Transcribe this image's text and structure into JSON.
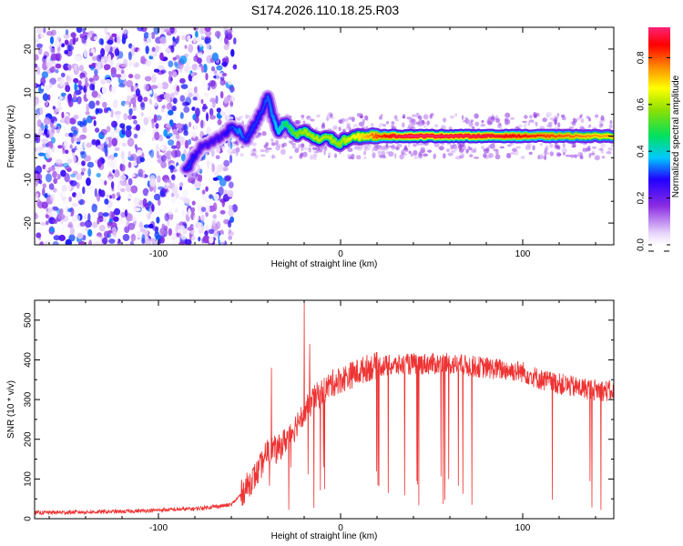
{
  "figure_title": "S174.2026.110.18.25.R03",
  "chart_data": [
    {
      "type": "heatmap",
      "title": "S174.2026.110.18.25.R03",
      "xlabel": "Height of straight line (km)",
      "ylabel": "Frequency (Hz)",
      "xlim": [
        -168,
        150
      ],
      "ylim": [
        -25,
        25
      ],
      "xticks": [
        -100,
        0,
        100
      ],
      "xtick_labels": [
        "-100",
        "0",
        "100"
      ],
      "yticks": [
        20,
        10,
        0,
        -10,
        -20
      ],
      "ytick_labels": [
        "20",
        "10",
        "0",
        "-10",
        "-20"
      ],
      "colorbar": {
        "label": "Normalized spectral amplitude",
        "range": [
          0.0,
          0.93
        ],
        "ticks": [
          0.0,
          0.2,
          0.4,
          0.6,
          0.8
        ],
        "tick_labels": [
          "0.0",
          "0.2",
          "0.4",
          "0.6",
          "0.8"
        ]
      },
      "ridge": {
        "note": "dominant frequency ridge, approximate",
        "x": [
          -85,
          -82,
          -78,
          -65,
          -60,
          -55,
          -52,
          -48,
          -44,
          -40,
          -37,
          -34,
          -31,
          -28,
          -25,
          -20,
          -16,
          -12,
          -8,
          -4,
          -1,
          2,
          6,
          12,
          20,
          30,
          40,
          60,
          80,
          100,
          120,
          140,
          150
        ],
        "y": [
          -8,
          -6,
          -3,
          0,
          2,
          1,
          -1,
          2,
          5,
          9,
          4,
          1,
          3,
          2,
          0,
          1,
          0,
          -1,
          0,
          -1,
          -2,
          -1,
          -0.5,
          0,
          0,
          0,
          0,
          0,
          0,
          0,
          0,
          0,
          0
        ],
        "amplitude": [
          0.3,
          0.3,
          0.25,
          0.25,
          0.3,
          0.35,
          0.3,
          0.3,
          0.3,
          0.32,
          0.35,
          0.4,
          0.45,
          0.5,
          0.55,
          0.6,
          0.6,
          0.62,
          0.6,
          0.6,
          0.58,
          0.6,
          0.65,
          0.7,
          0.8,
          0.9,
          0.93,
          0.92,
          0.9,
          0.85,
          0.8,
          0.75,
          0.75
        ]
      },
      "noise": {
        "region_x": [
          -168,
          -58
        ],
        "freq_spread": [
          -25,
          25
        ],
        "amplitude_range": [
          0.0,
          0.25
        ]
      }
    },
    {
      "type": "line",
      "xlabel": "Height of straight line (km)",
      "ylabel": "SNR (10 * v/v)",
      "xlim": [
        -168,
        150
      ],
      "ylim": [
        0,
        550
      ],
      "xticks": [
        -100,
        0,
        100
      ],
      "xtick_labels": [
        "-100",
        "0",
        "100"
      ],
      "yticks": [
        0,
        100,
        200,
        300,
        400,
        500
      ],
      "ytick_labels": [
        "0",
        "100",
        "200",
        "300",
        "400",
        "500"
      ],
      "color": "#ee3333",
      "envelope": {
        "x": [
          -168,
          -120,
          -80,
          -60,
          -55,
          -50,
          -45,
          -42,
          -40,
          -38,
          -35,
          -30,
          -25,
          -22,
          -20,
          -18,
          -15,
          -10,
          -5,
          0,
          5,
          10,
          15,
          20,
          25,
          30,
          40,
          50,
          60,
          70,
          80,
          90,
          100,
          110,
          120,
          130,
          140,
          150
        ],
        "y": [
          15,
          18,
          25,
          35,
          60,
          90,
          120,
          150,
          170,
          180,
          170,
          200,
          230,
          260,
          270,
          280,
          300,
          320,
          340,
          350,
          360,
          370,
          380,
          385,
          385,
          385,
          390,
          390,
          390,
          385,
          380,
          375,
          370,
          350,
          340,
          330,
          325,
          320
        ]
      },
      "spikes_up": [
        {
          "x": -38,
          "y": 380
        },
        {
          "x": -20,
          "y": 550
        },
        {
          "x": -17,
          "y": 440
        }
      ],
      "dropouts_x_range": [
        -42,
        148
      ],
      "dropout_min": [
        20,
        130
      ]
    }
  ]
}
